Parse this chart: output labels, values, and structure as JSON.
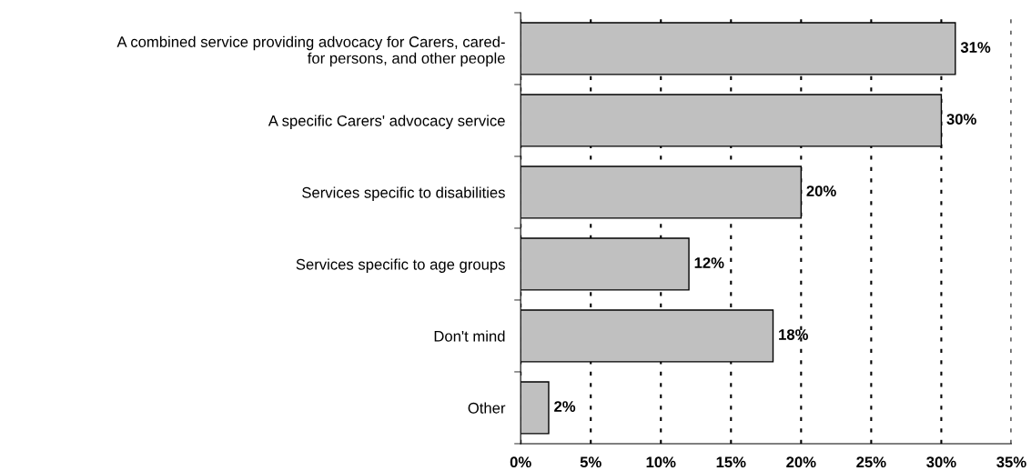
{
  "chart_data": {
    "type": "bar",
    "orientation": "horizontal",
    "categories": [
      "A combined service providing advocacy for Carers, cared-\nfor persons, and other people",
      "A specific Carers' advocacy service",
      "Services specific to disabilities",
      "Services specific to age groups",
      "Don't mind",
      "Other"
    ],
    "values": [
      31,
      30,
      20,
      12,
      18,
      2
    ],
    "value_labels": [
      "31%",
      "30%",
      "20%",
      "12%",
      "18%",
      "2%"
    ],
    "color": "#c0c0c0",
    "xlim": [
      0,
      35
    ],
    "xticks": [
      {
        "value": 0,
        "label": "0%"
      },
      {
        "value": 5,
        "label": "5%"
      },
      {
        "value": 10,
        "label": "10%"
      },
      {
        "value": 15,
        "label": "15%"
      },
      {
        "value": 20,
        "label": "20%"
      },
      {
        "value": 25,
        "label": "25%"
      },
      {
        "value": 30,
        "label": "30%"
      },
      {
        "value": 35,
        "label": "35%"
      }
    ],
    "grid": "x"
  }
}
